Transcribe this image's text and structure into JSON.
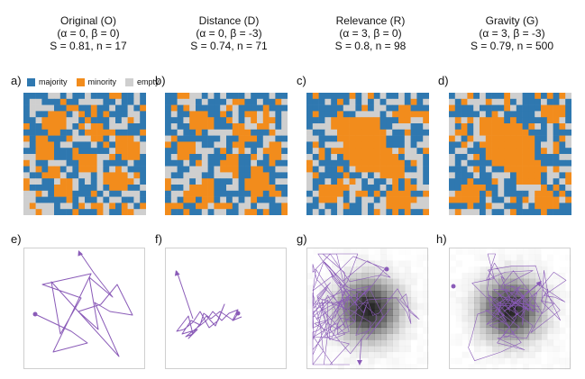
{
  "colors": {
    "majority": "#2f78b0",
    "minority": "#f28c1c",
    "empty": "#cfcfcf",
    "path": "#8a5bb8"
  },
  "columns": [
    {
      "name": "Original (O)",
      "params": "(α = 0, β = 0)",
      "stats": "S = 0.81, n = 17"
    },
    {
      "name": "Distance (D)",
      "params": "(α = 0, β = -3)",
      "stats": "S = 0.74, n = 71"
    },
    {
      "name": "Relevance (R)",
      "params": "(α = 3, β = 0)",
      "stats": "S = 0.8, n = 98"
    },
    {
      "name": "Gravity (G)",
      "params": "(α = 3, β = -3)",
      "stats": "S = 0.79, n = 500"
    }
  ],
  "legend": [
    {
      "label": "majority",
      "color": "#2f78b0"
    },
    {
      "label": "minority",
      "color": "#f28c1c"
    },
    {
      "label": "empty",
      "color": "#cfcfcf"
    }
  ],
  "panel_labels": {
    "grid": [
      "a)",
      "b)",
      "c)",
      "d)"
    ],
    "trajectory": [
      "e)",
      "f)",
      "g)",
      "h)"
    ]
  }
}
